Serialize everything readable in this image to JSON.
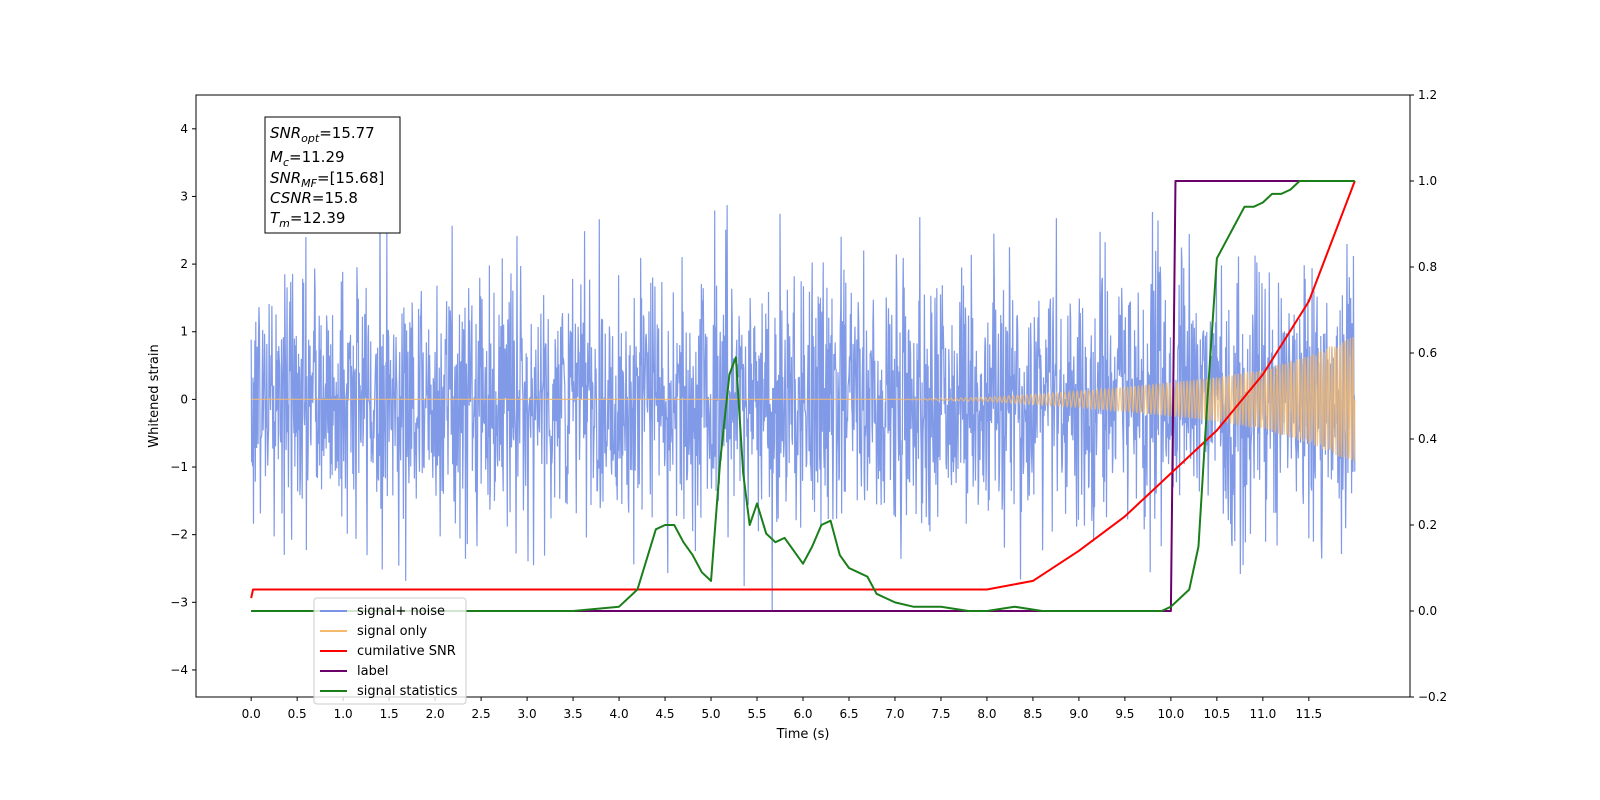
{
  "chart_data": {
    "type": "line",
    "title": "",
    "xlabel": "Time (s)",
    "ylabel_left": "Whitened strain",
    "ylabel_right": "",
    "xlim": [
      -0.6,
      12.6
    ],
    "ylim_left": [
      -4.4,
      4.5
    ],
    "ylim_right": [
      -0.2,
      1.2
    ],
    "x_ticks": [
      "0.0",
      "0.5",
      "1.0",
      "1.5",
      "2.0",
      "2.5",
      "3.0",
      "3.5",
      "4.0",
      "4.5",
      "5.0",
      "5.5",
      "6.0",
      "6.5",
      "7.0",
      "7.5",
      "8.0",
      "8.5",
      "9.0",
      "9.5",
      "10.0",
      "10.5",
      "11.0",
      "11.5"
    ],
    "y_ticks_left": [
      "4",
      "3",
      "2",
      "1",
      "0",
      "−1",
      "−2",
      "−3",
      "−4"
    ],
    "y_ticks_right": [
      "1.2",
      "1.0",
      "0.8",
      "0.6",
      "0.4",
      "0.2",
      "0.0",
      "−0.2"
    ],
    "grid": false,
    "legend_position": "lower-left",
    "info_box": [
      {
        "main": "SNR",
        "sub": "opt",
        "rest": "=15.77"
      },
      {
        "main": "M",
        "sub": "c",
        "rest": "=11.29"
      },
      {
        "main": "SNR",
        "sub": "MF",
        "rest": "=[15.68]"
      },
      {
        "main": "CSNR",
        "sub": "",
        "rest": "=15.8"
      },
      {
        "main": "T",
        "sub": "m",
        "rest": "=12.39"
      }
    ],
    "series": [
      {
        "name": "signal+ noise",
        "axis": "left",
        "color": "#7a95e6",
        "description_values": {
          "noise_std": 0.95,
          "duration": 12.0,
          "t_start": 0.0
        }
      },
      {
        "name": "signal only",
        "axis": "left",
        "color": "#f5b96b",
        "x": [
          0.0,
          7.0,
          8.0,
          9.0,
          10.0,
          10.5,
          11.0,
          11.5,
          12.0
        ],
        "envelope": [
          0.0,
          0.0,
          0.03,
          0.12,
          0.25,
          0.33,
          0.45,
          0.65,
          0.95
        ]
      },
      {
        "name": "cumilative SNR",
        "axis": "right",
        "color": "#ff0000",
        "x": [
          0.0,
          0.02,
          8.0,
          8.5,
          9.0,
          9.5,
          10.0,
          10.5,
          11.0,
          11.5,
          12.0
        ],
        "y": [
          0.03,
          0.05,
          0.05,
          0.07,
          0.14,
          0.22,
          0.32,
          0.42,
          0.55,
          0.72,
          1.0
        ]
      },
      {
        "name": "label",
        "axis": "right",
        "color": "#6a006a",
        "x": [
          0.0,
          10.0,
          10.05,
          11.5
        ],
        "y": [
          0.0,
          0.0,
          1.0,
          1.0
        ]
      },
      {
        "name": "signal statistics",
        "axis": "right",
        "color": "#1a7f1a",
        "x": [
          0.0,
          3.5,
          4.0,
          4.2,
          4.3,
          4.4,
          4.5,
          4.6,
          4.7,
          4.8,
          4.9,
          5.0,
          5.1,
          5.2,
          5.27,
          5.35,
          5.42,
          5.5,
          5.6,
          5.7,
          5.8,
          5.9,
          6.0,
          6.1,
          6.2,
          6.3,
          6.4,
          6.5,
          6.6,
          6.7,
          6.8,
          6.9,
          7.0,
          7.2,
          7.5,
          7.8,
          8.0,
          8.3,
          8.6,
          9.0,
          9.5,
          9.9,
          10.0,
          10.1,
          10.2,
          10.3,
          10.4,
          10.5,
          10.6,
          10.7,
          10.8,
          10.9,
          11.0,
          11.1,
          11.2,
          11.3,
          11.4,
          11.5,
          12.0
        ],
        "y": [
          0.0,
          0.0,
          0.01,
          0.05,
          0.12,
          0.19,
          0.2,
          0.2,
          0.16,
          0.13,
          0.09,
          0.07,
          0.35,
          0.55,
          0.59,
          0.32,
          0.2,
          0.25,
          0.18,
          0.16,
          0.17,
          0.14,
          0.11,
          0.15,
          0.2,
          0.21,
          0.13,
          0.1,
          0.09,
          0.08,
          0.04,
          0.03,
          0.02,
          0.01,
          0.01,
          0.0,
          0.0,
          0.01,
          0.0,
          0.0,
          0.0,
          0.0,
          0.01,
          0.03,
          0.05,
          0.15,
          0.5,
          0.82,
          0.86,
          0.9,
          0.94,
          0.94,
          0.95,
          0.97,
          0.97,
          0.98,
          1.0,
          1.0,
          1.0
        ]
      }
    ]
  }
}
